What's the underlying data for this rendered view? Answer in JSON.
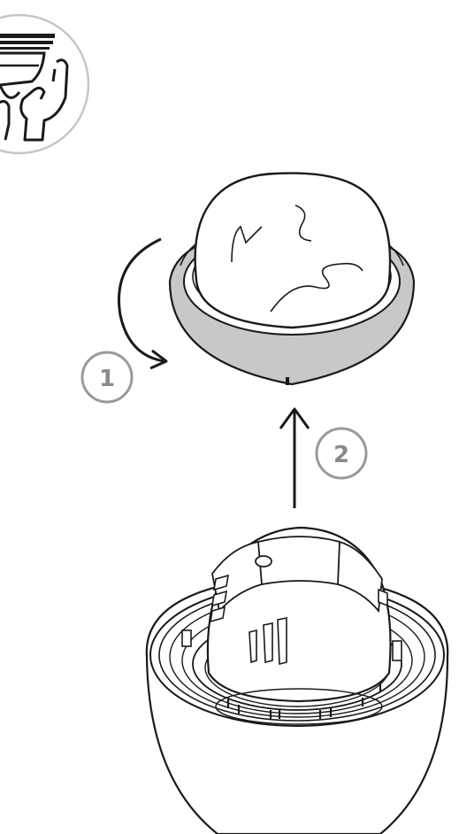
{
  "steps": [
    {
      "number": "1",
      "action": "rotate-counterclockwise"
    },
    {
      "number": "2",
      "action": "lift-up"
    }
  ],
  "icons": {
    "instruction": "hands-holding-camera-icon",
    "step_1_arrow": "curved-rotation-arrow-icon",
    "step_2_arrow": "up-arrow-icon"
  },
  "colors": {
    "line": "#1a1a1a",
    "trim_ring": "#c8c8c8",
    "step_circle": "#9a9a9a",
    "step_number": "#8a8a8a",
    "icon_circle": "#c6c6c6"
  }
}
